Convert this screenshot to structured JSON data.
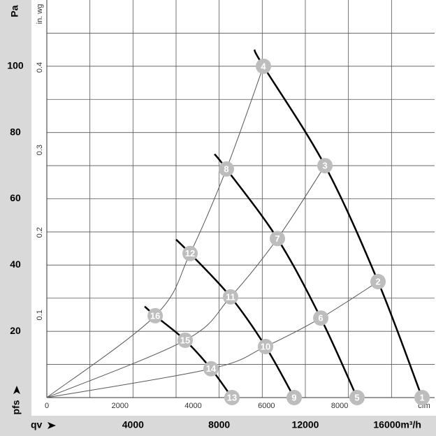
{
  "chart_data": {
    "type": "fan-curve",
    "y_label": "Pa",
    "y2_label": "in. wg",
    "x2_label": "cfm",
    "y_symbol": "pfs",
    "x_symbol": "qv",
    "x_unit": "m³/h",
    "xlim": [
      0,
      18000
    ],
    "ylim": [
      0,
      120
    ],
    "x2lim": [
      0,
      10594
    ],
    "y2lim": [
      0,
      0.4817
    ],
    "xticks": [
      4000,
      8000,
      12000,
      16000
    ],
    "yticks": [
      20,
      40,
      60,
      80,
      100
    ],
    "x2ticks": [
      0,
      2000,
      4000,
      6000,
      8000
    ],
    "y2ticks": [
      0.1,
      0.2,
      0.3,
      0.4
    ],
    "xgrid": [
      2000,
      4000,
      6000,
      8000,
      10000,
      12000,
      14000,
      16000
    ],
    "ygrid": [
      10,
      20,
      30,
      40,
      50,
      60,
      70,
      80,
      90,
      100,
      110
    ],
    "series": [
      {
        "kind": "fan",
        "color": "#000000",
        "x": [
          9633,
          10055,
          12910,
          15375,
          17418
        ],
        "values": [
          105,
          100,
          70,
          35,
          0
        ]
      },
      {
        "kind": "fan",
        "color": "#000000",
        "x": [
          7785,
          8336,
          10704,
          12715,
          14400
        ],
        "values": [
          73.5,
          69,
          48,
          24,
          0
        ]
      },
      {
        "kind": "fan",
        "color": "#000000",
        "x": [
          6000,
          6650,
          8530,
          10152,
          11482
        ],
        "values": [
          47.7,
          43.5,
          30.4,
          15.4,
          0
        ]
      },
      {
        "kind": "fan",
        "color": "#000000",
        "x": [
          4541,
          5030,
          6422,
          7622,
          8595
        ],
        "values": [
          27.5,
          24.7,
          17.3,
          8.7,
          0
        ]
      },
      {
        "kind": "system",
        "color": "#555555",
        "x": [
          0,
          5030,
          6650,
          8336,
          10055
        ],
        "values": [
          0,
          24.7,
          43.5,
          69,
          100
        ]
      },
      {
        "kind": "system",
        "color": "#555555",
        "x": [
          0,
          6422,
          8530,
          10704,
          12910
        ],
        "values": [
          0,
          17.3,
          30.4,
          48,
          70
        ]
      },
      {
        "kind": "system",
        "color": "#555555",
        "x": [
          0,
          7622,
          10152,
          12715,
          15375
        ],
        "values": [
          0,
          8.7,
          15.4,
          24,
          35
        ]
      }
    ],
    "point_color": "#bdbdbd",
    "points": [
      {
        "label": "1",
        "x": 17418,
        "y": 0
      },
      {
        "label": "2",
        "x": 15375,
        "y": 35
      },
      {
        "label": "3",
        "x": 12910,
        "y": 70
      },
      {
        "label": "4",
        "x": 10055,
        "y": 100
      },
      {
        "label": "5",
        "x": 14400,
        "y": 0
      },
      {
        "label": "6",
        "x": 12715,
        "y": 24
      },
      {
        "label": "7",
        "x": 10704,
        "y": 48
      },
      {
        "label": "8",
        "x": 8336,
        "y": 69
      },
      {
        "label": "9",
        "x": 11482,
        "y": 0
      },
      {
        "label": "10",
        "x": 10152,
        "y": 15.4
      },
      {
        "label": "11",
        "x": 8530,
        "y": 30.4
      },
      {
        "label": "12",
        "x": 6650,
        "y": 43.5
      },
      {
        "label": "13",
        "x": 8595,
        "y": 0
      },
      {
        "label": "14",
        "x": 7622,
        "y": 8.7
      },
      {
        "label": "15",
        "x": 6422,
        "y": 17.3
      },
      {
        "label": "16",
        "x": 5030,
        "y": 24.7
      }
    ]
  }
}
